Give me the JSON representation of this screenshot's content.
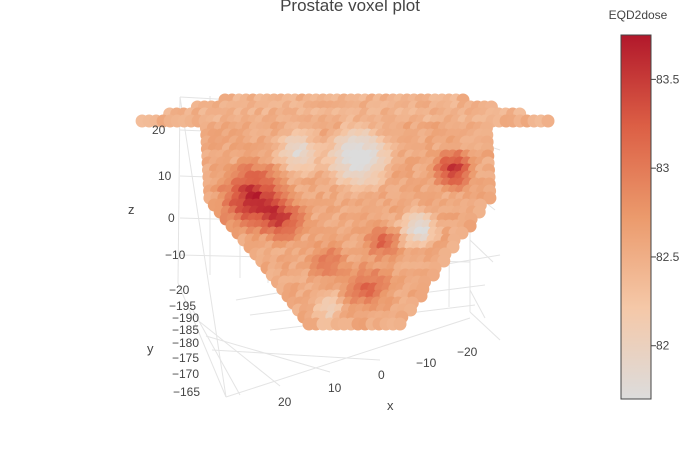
{
  "chart_data": {
    "type": "scatter3d",
    "title": "Prostate voxel plot",
    "axes": {
      "x": {
        "label": "x",
        "ticks": [
          "20",
          "10",
          "0",
          "−10",
          "−20"
        ]
      },
      "y": {
        "label": "y",
        "ticks": [
          "−195",
          "−190",
          "−185",
          "−180",
          "−175",
          "−170",
          "−165"
        ]
      },
      "z": {
        "label": "z",
        "ticks": [
          "20",
          "10",
          "0",
          "−10",
          "−20"
        ]
      }
    },
    "colorbar": {
      "title": "EQD2dose",
      "range": [
        81.7,
        83.75
      ],
      "ticks": [
        "83.5",
        "83",
        "82.5",
        "82"
      ],
      "tick_values": [
        83.5,
        83.0,
        82.5,
        82.0
      ],
      "colorscale": [
        "#dcdcdc",
        "#f5c8a8",
        "#eb9a6c",
        "#dc5f45",
        "#b2182b"
      ]
    },
    "grid": true,
    "legend": "colorbar-right"
  }
}
